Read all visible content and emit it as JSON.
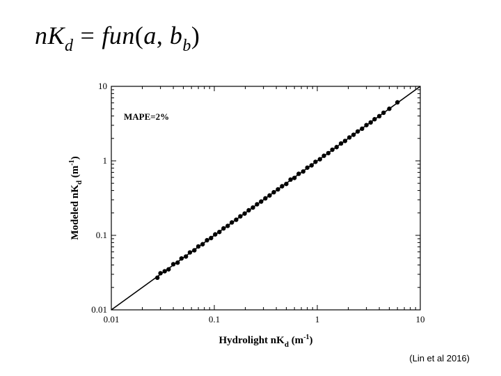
{
  "equation": {
    "lhs": "nK",
    "lhs_sub": "d",
    "op": "=",
    "fn": "fun",
    "arg1": "a",
    "arg2": "b",
    "arg2_sub": "b"
  },
  "citation": "(Lin et al 2016)",
  "chart_data": {
    "type": "scatter",
    "title": "",
    "xlabel": "Hydrolight nK",
    "xlabel_sub": "d",
    "xlabel_unit": "(m",
    "xlabel_sup": "-1",
    "xlabel_close": ")",
    "ylabel": "Modeled nK",
    "ylabel_sub": "d",
    "ylabel_unit": "(m",
    "ylabel_sup": "-1",
    "ylabel_close": ")",
    "xscale": "log",
    "yscale": "log",
    "xlim": [
      0.01,
      10
    ],
    "ylim": [
      0.01,
      10
    ],
    "xticks": [
      0.01,
      0.1,
      1,
      10
    ],
    "xtick_labels": [
      "0.01",
      "0.1",
      "1",
      "10"
    ],
    "yticks": [
      0.01,
      0.1,
      1,
      10
    ],
    "ytick_labels": [
      "0.01",
      "0.1",
      "1",
      "10"
    ],
    "annotation": "MAPE=2%",
    "grid": false,
    "reference_line": {
      "type": "1:1",
      "color": "#000000"
    },
    "series": [
      {
        "marker_color": "#000000",
        "x": [
          0.028,
          0.03,
          0.033,
          0.036,
          0.04,
          0.044,
          0.048,
          0.053,
          0.058,
          0.064,
          0.07,
          0.077,
          0.085,
          0.093,
          0.102,
          0.112,
          0.123,
          0.135,
          0.148,
          0.163,
          0.179,
          0.197,
          0.216,
          0.237,
          0.26,
          0.285,
          0.313,
          0.344,
          0.378,
          0.415,
          0.455,
          0.5,
          0.55,
          0.6,
          0.66,
          0.73,
          0.8,
          0.88,
          0.96,
          1.06,
          1.16,
          1.28,
          1.4,
          1.54,
          1.7,
          1.86,
          2.05,
          2.25,
          2.47,
          2.72,
          3.0,
          3.3,
          3.6,
          4.0,
          4.4,
          5.0,
          6.0
        ],
        "y": [
          0.027,
          0.031,
          0.033,
          0.035,
          0.041,
          0.043,
          0.049,
          0.052,
          0.059,
          0.063,
          0.071,
          0.076,
          0.086,
          0.092,
          0.103,
          0.111,
          0.124,
          0.134,
          0.149,
          0.162,
          0.18,
          0.196,
          0.217,
          0.236,
          0.261,
          0.284,
          0.314,
          0.343,
          0.379,
          0.414,
          0.456,
          0.49,
          0.56,
          0.59,
          0.67,
          0.72,
          0.81,
          0.87,
          0.97,
          1.05,
          1.17,
          1.27,
          1.41,
          1.53,
          1.71,
          1.85,
          2.06,
          2.24,
          2.48,
          2.7,
          3.02,
          3.28,
          3.62,
          3.98,
          4.42,
          5.0,
          6.1
        ]
      }
    ]
  }
}
